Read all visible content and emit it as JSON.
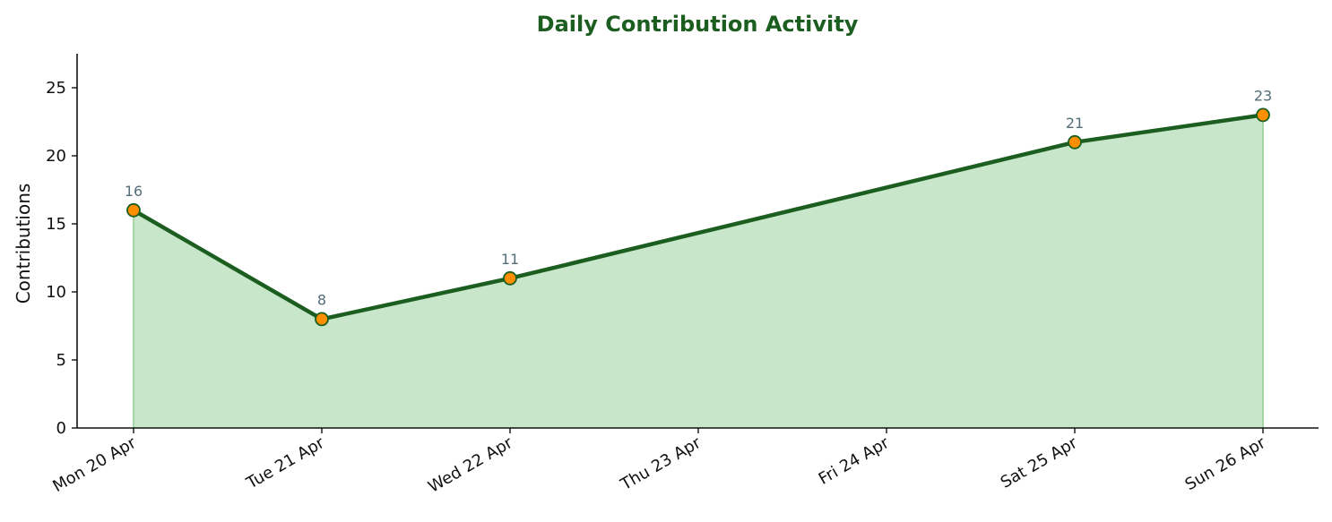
{
  "chart_data": {
    "type": "area",
    "title": "Daily Contribution Activity",
    "xlabel": "",
    "ylabel": "Contributions",
    "categories": [
      "Mon 20 Apr",
      "Tue 21 Apr",
      "Wed 22 Apr",
      "Thu 23 Apr",
      "Fri 24 Apr",
      "Sat 25 Apr",
      "Sun 26 Apr"
    ],
    "points": [
      {
        "x": "Mon 20 Apr",
        "y": 16
      },
      {
        "x": "Tue 21 Apr",
        "y": 8
      },
      {
        "x": "Wed 22 Apr",
        "y": 11
      },
      {
        "x": "Sat 25 Apr",
        "y": 21
      },
      {
        "x": "Sun 26 Apr",
        "y": 23
      }
    ],
    "data_labels": [
      "16",
      "8",
      "11",
      "21",
      "23"
    ],
    "yticks": [
      0,
      5,
      10,
      15,
      20,
      25
    ],
    "ytick_labels": [
      "0",
      "5",
      "10",
      "15",
      "20",
      "25"
    ],
    "ylim": [
      0,
      27.5
    ],
    "grid": false,
    "legend": "none",
    "colors": {
      "title": "#1b5e20",
      "line": "#1b5e20",
      "fill": "#c8e6c9",
      "marker_fill": "#ff8f00",
      "marker_edge": "#1b5e20",
      "data_label": "#546e7a",
      "axis": "#111111"
    }
  }
}
